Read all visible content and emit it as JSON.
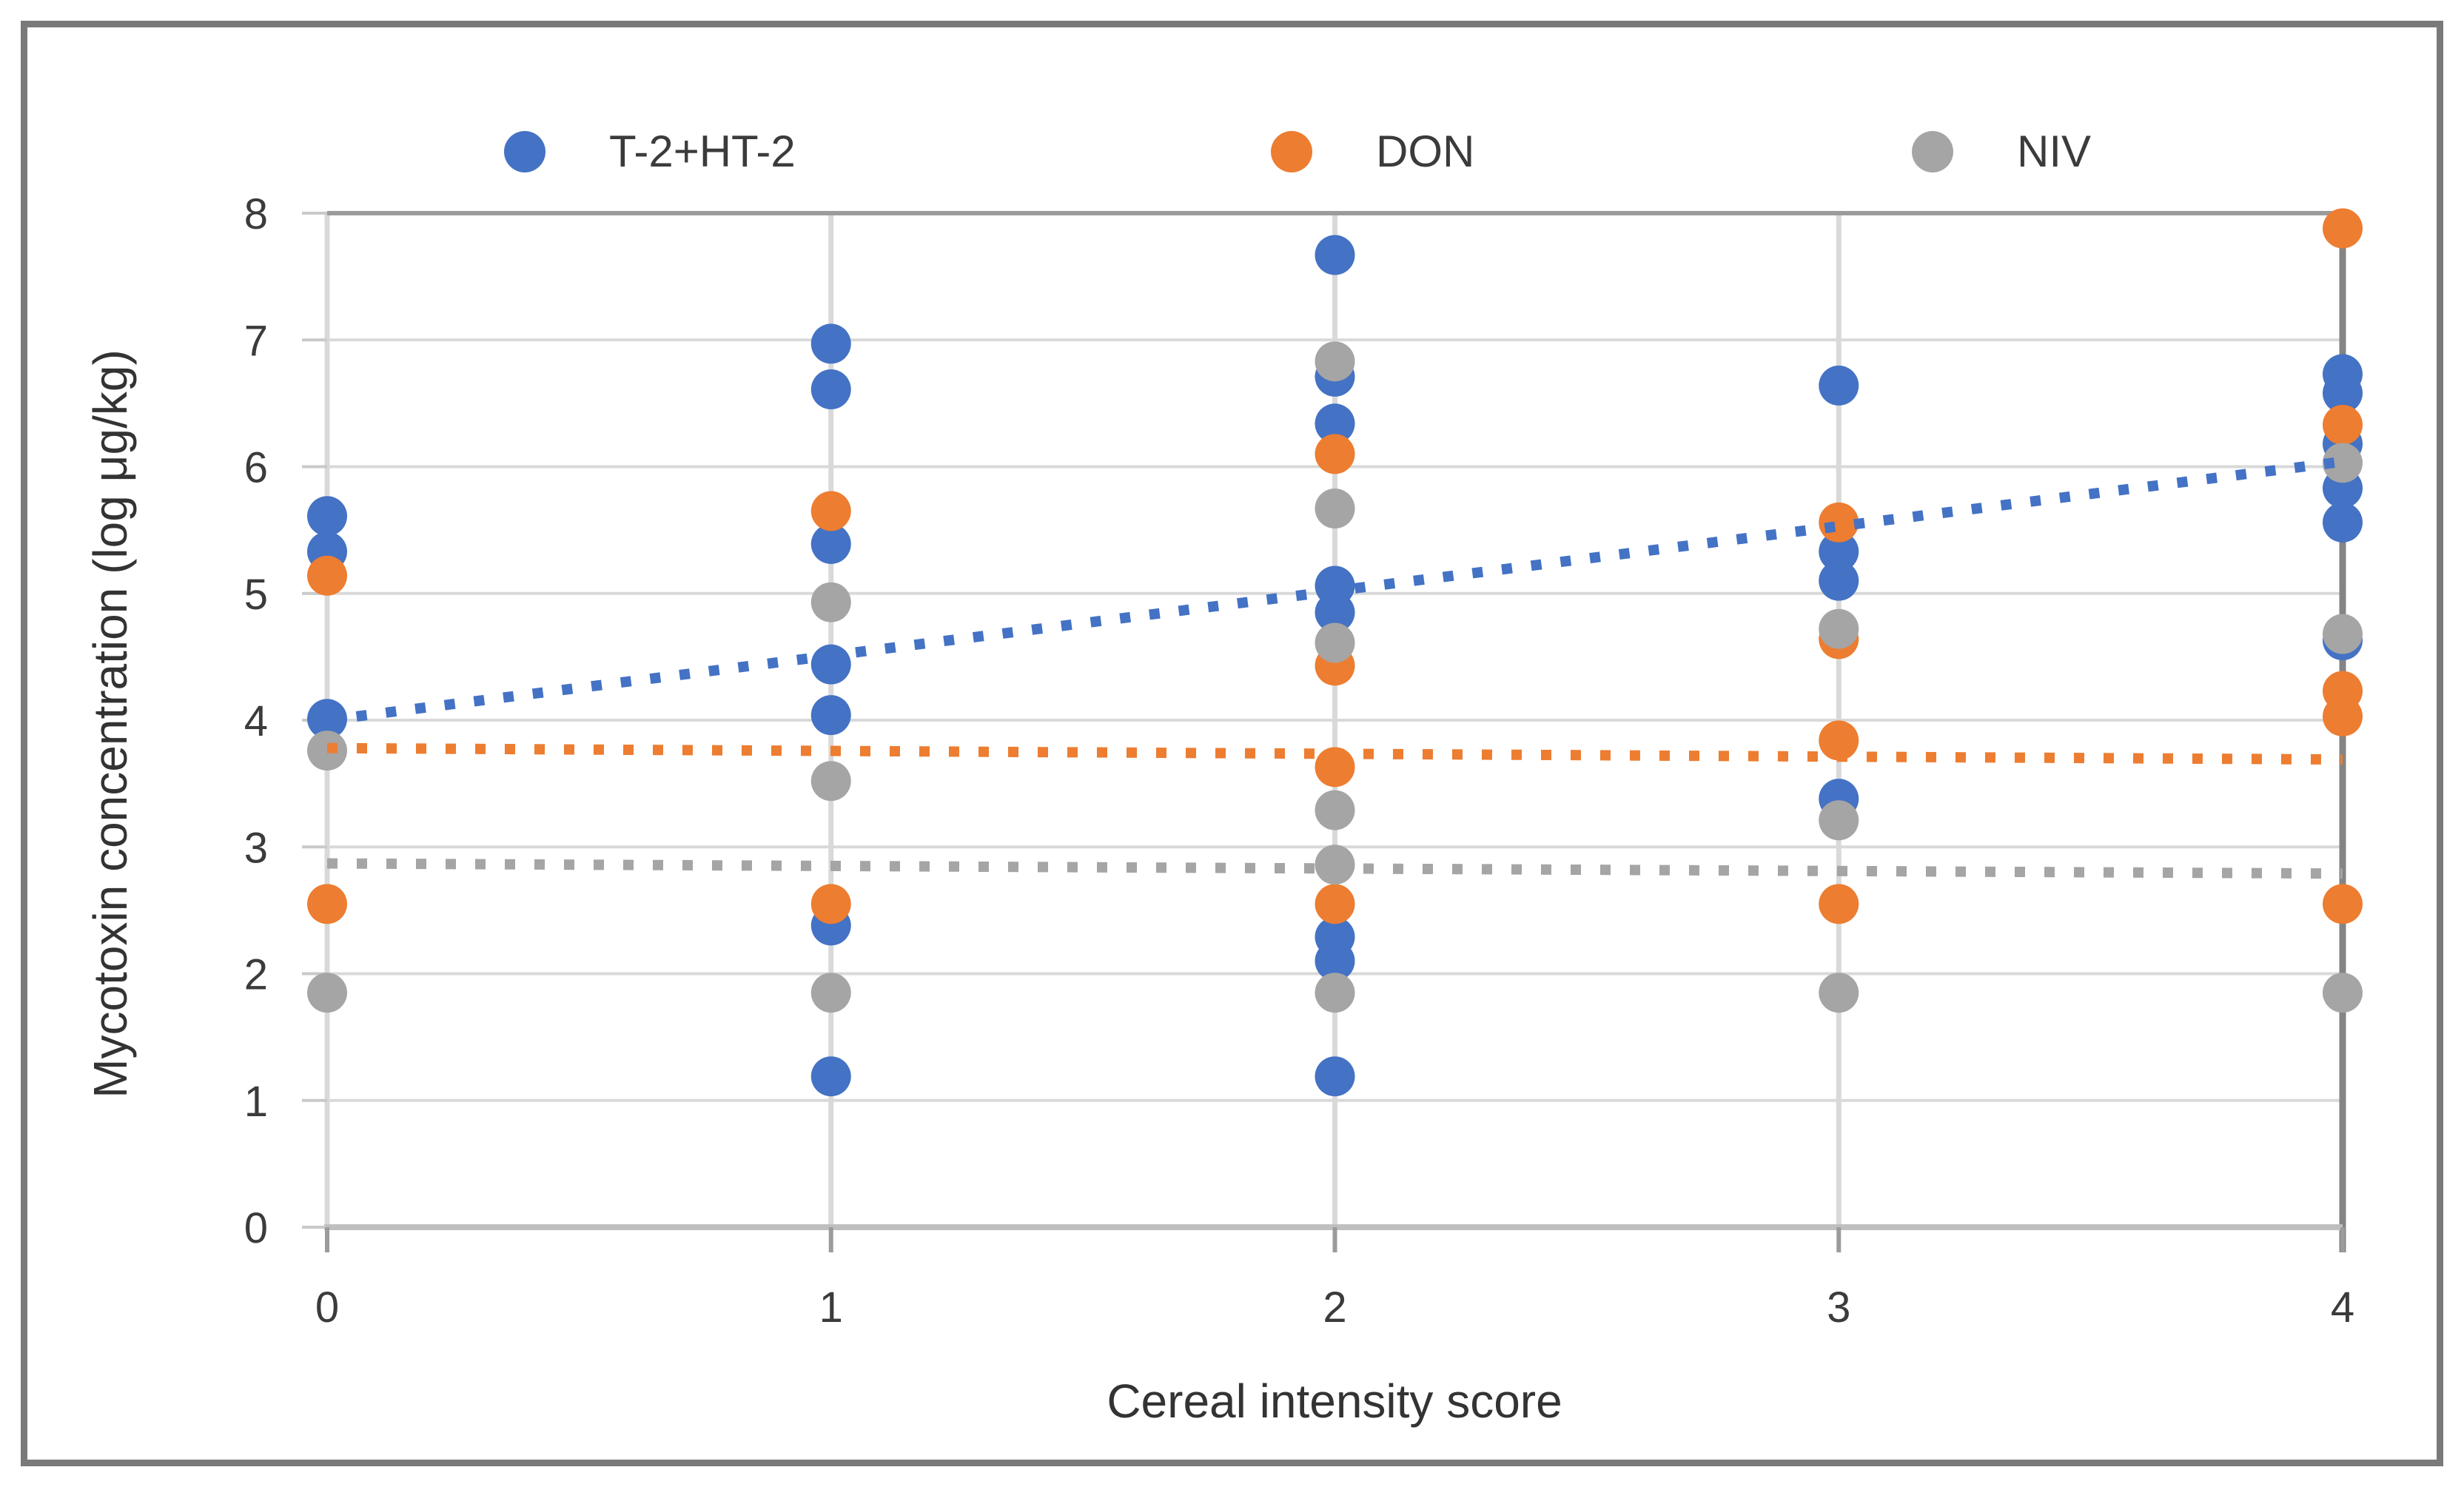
{
  "legend": {
    "items": [
      {
        "label": "T-2+HT-2",
        "color": "#4472C4"
      },
      {
        "label": "DON",
        "color": "#ED7D31"
      },
      {
        "label": "NIV",
        "color": "#A5A5A5"
      }
    ]
  },
  "axes": {
    "x_title": "Cereal intensity score",
    "y_title": "Mycotoxin concentration (log μg/kg)"
  },
  "chart_data": {
    "type": "scatter",
    "title": "",
    "xlabel": "Cereal intensity score",
    "ylabel": "Mycotoxin concentration (log μg/kg)",
    "xlim": [
      0,
      4
    ],
    "ylim": [
      0,
      8
    ],
    "x_ticks": [
      "0",
      "1",
      "2",
      "3",
      "4"
    ],
    "y_ticks": [
      "0",
      "1",
      "2",
      "3",
      "4",
      "5",
      "6",
      "7",
      "8"
    ],
    "grid": true,
    "legend_position": "top",
    "series": [
      {
        "name": "T-2+HT-2",
        "color": "#4472C4",
        "points": [
          [
            0,
            5.61
          ],
          [
            0,
            5.33
          ],
          [
            0,
            4.01
          ],
          [
            1,
            6.97
          ],
          [
            1,
            6.61
          ],
          [
            1,
            5.39
          ],
          [
            1,
            4.44
          ],
          [
            1,
            4.04
          ],
          [
            1,
            2.38
          ],
          [
            1,
            1.19
          ],
          [
            2,
            7.67
          ],
          [
            2,
            6.71
          ],
          [
            2,
            6.34
          ],
          [
            2,
            5.06
          ],
          [
            2,
            4.85
          ],
          [
            2,
            2.29
          ],
          [
            2,
            2.1
          ],
          [
            2,
            1.19
          ],
          [
            3,
            6.64
          ],
          [
            3,
            5.33
          ],
          [
            3,
            5.1
          ],
          [
            3,
            3.38
          ],
          [
            4,
            6.73
          ],
          [
            4,
            6.58
          ],
          [
            4,
            6.18
          ],
          [
            4,
            5.83
          ],
          [
            4,
            5.56
          ],
          [
            4,
            4.63
          ]
        ],
        "trendline": {
          "style": "dotted",
          "x": [
            0,
            4
          ],
          "y": [
            4.0,
            6.04
          ]
        }
      },
      {
        "name": "DON",
        "color": "#ED7D31",
        "points": [
          [
            0,
            5.14
          ],
          [
            0,
            2.55
          ],
          [
            1,
            5.65
          ],
          [
            1,
            2.55
          ],
          [
            2,
            6.1
          ],
          [
            2,
            4.43
          ],
          [
            2,
            3.63
          ],
          [
            2,
            2.55
          ],
          [
            3,
            5.56
          ],
          [
            3,
            4.64
          ],
          [
            3,
            3.84
          ],
          [
            3,
            2.55
          ],
          [
            4,
            7.88
          ],
          [
            4,
            6.33
          ],
          [
            4,
            4.23
          ],
          [
            4,
            4.03
          ],
          [
            4,
            2.55
          ]
        ],
        "trendline": {
          "style": "dotted",
          "x": [
            0,
            4
          ],
          "y": [
            3.78,
            3.69
          ]
        }
      },
      {
        "name": "NIV",
        "color": "#A5A5A5",
        "points": [
          [
            0,
            3.76
          ],
          [
            0,
            1.85
          ],
          [
            1,
            4.93
          ],
          [
            1,
            3.52
          ],
          [
            1,
            1.85
          ],
          [
            2,
            6.83
          ],
          [
            2,
            5.67
          ],
          [
            2,
            4.61
          ],
          [
            2,
            3.29
          ],
          [
            2,
            2.86
          ],
          [
            2,
            1.85
          ],
          [
            3,
            4.72
          ],
          [
            3,
            3.21
          ],
          [
            3,
            1.85
          ],
          [
            4,
            6.03
          ],
          [
            4,
            4.68
          ],
          [
            4,
            1.85
          ]
        ],
        "trendline": {
          "style": "dotted",
          "x": [
            0,
            4
          ],
          "y": [
            2.87,
            2.79
          ]
        }
      }
    ]
  }
}
